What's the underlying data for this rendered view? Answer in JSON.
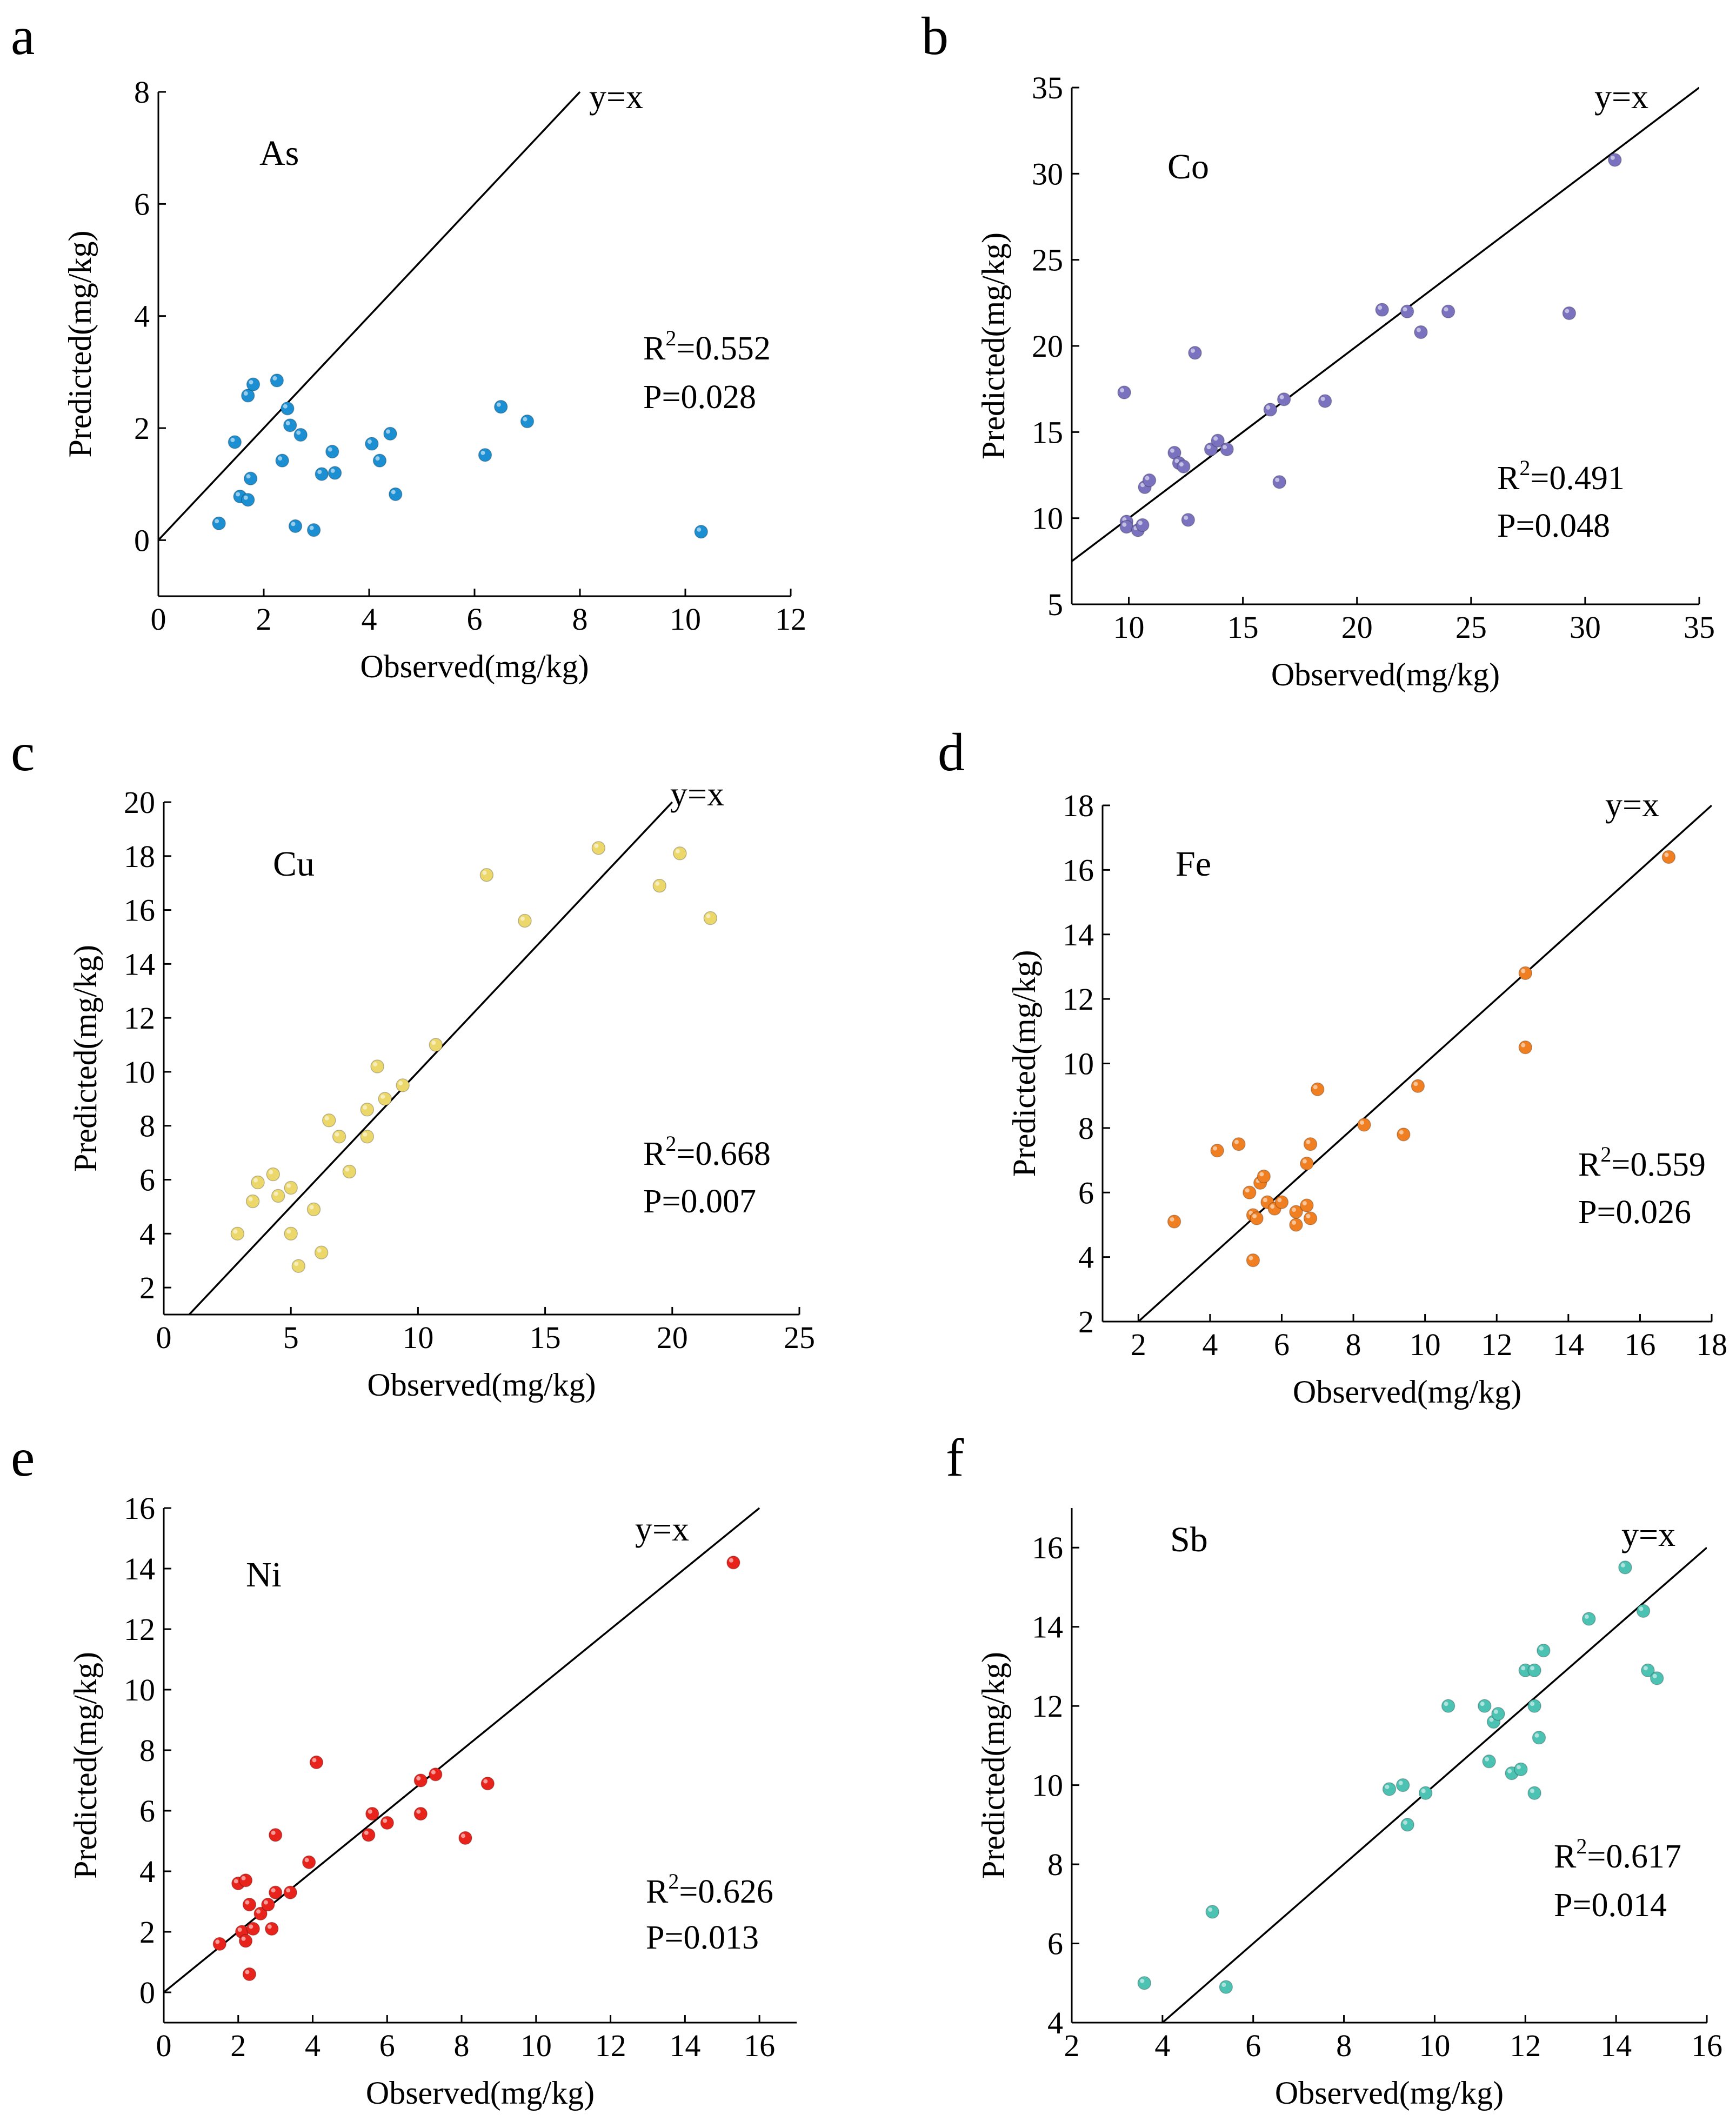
{
  "chart_data": [
    {
      "type": "scatter",
      "panel": "a",
      "element": "As",
      "xlabel": "Observed(mg/kg)",
      "ylabel": "Predicted(mg/kg)",
      "xlim": [
        0,
        12
      ],
      "ylim": [
        -1,
        8
      ],
      "xticks": [
        0,
        2,
        4,
        6,
        8,
        10,
        12
      ],
      "yticks": [
        0,
        2,
        4,
        6,
        8
      ],
      "ref_line_label": "y=x",
      "ref_line": [
        [
          0,
          0
        ],
        [
          8,
          8
        ]
      ],
      "r2_prefix": "R",
      "r2_sup": "2",
      "r2_value": "=0.552",
      "p_text": "P=0.028",
      "color": "#1b8fd2",
      "points": [
        [
          1.15,
          0.3
        ],
        [
          1.45,
          1.75
        ],
        [
          1.55,
          0.78
        ],
        [
          1.7,
          0.72
        ],
        [
          1.7,
          2.58
        ],
        [
          1.75,
          1.1
        ],
        [
          1.8,
          2.78
        ],
        [
          2.25,
          2.85
        ],
        [
          2.35,
          1.42
        ],
        [
          2.45,
          2.35
        ],
        [
          2.5,
          2.05
        ],
        [
          2.6,
          0.25
        ],
        [
          2.7,
          1.88
        ],
        [
          2.95,
          0.18
        ],
        [
          3.1,
          1.18
        ],
        [
          3.3,
          1.58
        ],
        [
          3.35,
          1.2
        ],
        [
          4.05,
          1.72
        ],
        [
          4.2,
          1.42
        ],
        [
          4.4,
          1.9
        ],
        [
          4.5,
          0.82
        ],
        [
          6.2,
          1.52
        ],
        [
          6.5,
          2.38
        ],
        [
          7.0,
          2.12
        ],
        [
          10.3,
          0.15
        ]
      ]
    },
    {
      "type": "scatter",
      "panel": "b",
      "element": "Co",
      "xlabel": "Observed(mg/kg)",
      "ylabel": "Predicted(mg/kg)",
      "xlim": [
        7.5,
        35
      ],
      "ylim": [
        5,
        35
      ],
      "xticks": [
        10,
        15,
        20,
        25,
        30,
        35
      ],
      "yticks": [
        5,
        10,
        15,
        20,
        25,
        30,
        35
      ],
      "ref_line_label": "y=x",
      "ref_line": [
        [
          7.5,
          7.5
        ],
        [
          35,
          35
        ]
      ],
      "r2_prefix": "R",
      "r2_sup": "2",
      "r2_value": "=0.491",
      "p_text": "P=0.048",
      "color": "#7a72be",
      "points": [
        [
          9.8,
          17.3
        ],
        [
          9.9,
          9.8
        ],
        [
          9.9,
          9.5
        ],
        [
          10.4,
          9.3
        ],
        [
          10.6,
          9.6
        ],
        [
          10.7,
          11.8
        ],
        [
          10.9,
          12.2
        ],
        [
          12.0,
          13.8
        ],
        [
          12.2,
          13.2
        ],
        [
          12.4,
          13.0
        ],
        [
          12.6,
          9.9
        ],
        [
          12.9,
          19.6
        ],
        [
          13.6,
          14.0
        ],
        [
          13.9,
          14.5
        ],
        [
          14.3,
          14.0
        ],
        [
          16.2,
          16.3
        ],
        [
          16.6,
          12.1
        ],
        [
          16.8,
          16.9
        ],
        [
          18.6,
          16.8
        ],
        [
          21.1,
          22.1
        ],
        [
          22.2,
          22.0
        ],
        [
          22.8,
          20.8
        ],
        [
          24.0,
          22.0
        ],
        [
          29.3,
          21.9
        ],
        [
          31.3,
          30.8
        ]
      ]
    },
    {
      "type": "scatter",
      "panel": "c",
      "element": "Cu",
      "xlabel": "Observed(mg/kg)",
      "ylabel": "Predicted(mg/kg)",
      "xlim": [
        0,
        25
      ],
      "ylim": [
        1,
        20
      ],
      "xticks": [
        0,
        5,
        10,
        15,
        20,
        25
      ],
      "yticks": [
        2,
        4,
        6,
        8,
        10,
        12,
        14,
        16,
        18,
        20
      ],
      "ref_line_label": "y=x",
      "ref_line": [
        [
          1,
          1
        ],
        [
          20,
          20
        ]
      ],
      "r2_prefix": "R",
      "r2_sup": "2",
      "r2_value": "=0.668",
      "p_text": "P=0.007",
      "color": "#ecd86a",
      "points": [
        [
          2.9,
          4.0
        ],
        [
          3.5,
          5.2
        ],
        [
          3.7,
          5.9
        ],
        [
          4.3,
          6.2
        ],
        [
          4.5,
          5.4
        ],
        [
          5.0,
          4.0
        ],
        [
          5.0,
          5.7
        ],
        [
          5.3,
          2.8
        ],
        [
          5.9,
          4.9
        ],
        [
          6.2,
          3.3
        ],
        [
          6.5,
          8.2
        ],
        [
          6.9,
          7.6
        ],
        [
          7.3,
          6.3
        ],
        [
          8.0,
          8.6
        ],
        [
          8.0,
          7.6
        ],
        [
          8.4,
          10.2
        ],
        [
          8.7,
          9.0
        ],
        [
          9.4,
          9.5
        ],
        [
          10.7,
          11.0
        ],
        [
          12.7,
          17.3
        ],
        [
          14.2,
          15.6
        ],
        [
          17.1,
          18.3
        ],
        [
          19.5,
          16.9
        ],
        [
          20.3,
          18.1
        ],
        [
          21.5,
          15.7
        ]
      ]
    },
    {
      "type": "scatter",
      "panel": "d",
      "element": "Fe",
      "xlabel": "Observed(mg/kg)",
      "ylabel": "Predicted(mg/kg)",
      "xlim": [
        1,
        18
      ],
      "ylim": [
        2,
        18
      ],
      "xticks": [
        2,
        4,
        6,
        8,
        10,
        12,
        14,
        16,
        18
      ],
      "yticks": [
        2,
        4,
        6,
        8,
        10,
        12,
        14,
        16,
        18
      ],
      "ref_line_label": "y=x",
      "ref_line": [
        [
          2,
          2
        ],
        [
          18,
          18
        ]
      ],
      "r2_prefix": "R",
      "r2_sup": "2",
      "r2_value": "=0.559",
      "p_text": "P=0.026",
      "color": "#f07f22",
      "points": [
        [
          3.0,
          5.1
        ],
        [
          4.2,
          7.3
        ],
        [
          4.8,
          7.5
        ],
        [
          5.1,
          6.0
        ],
        [
          5.2,
          5.3
        ],
        [
          5.2,
          3.9
        ],
        [
          5.3,
          5.2
        ],
        [
          5.4,
          6.3
        ],
        [
          5.5,
          6.5
        ],
        [
          5.6,
          5.7
        ],
        [
          5.8,
          5.5
        ],
        [
          6.0,
          5.7
        ],
        [
          6.4,
          5.4
        ],
        [
          6.4,
          5.0
        ],
        [
          6.7,
          6.9
        ],
        [
          6.7,
          5.6
        ],
        [
          6.8,
          5.2
        ],
        [
          6.8,
          7.5
        ],
        [
          7.0,
          9.2
        ],
        [
          8.3,
          8.1
        ],
        [
          9.4,
          7.8
        ],
        [
          9.8,
          9.3
        ],
        [
          12.8,
          12.8
        ],
        [
          12.8,
          10.5
        ],
        [
          16.8,
          16.4
        ]
      ]
    },
    {
      "type": "scatter",
      "panel": "e",
      "element": "Ni",
      "xlabel": "Observed(mg/kg)",
      "ylabel": "Predicted(mg/kg)",
      "xlim": [
        0,
        17
      ],
      "ylim": [
        -1,
        16
      ],
      "xticks": [
        0,
        2,
        4,
        6,
        8,
        10,
        12,
        14,
        16
      ],
      "yticks": [
        0,
        2,
        4,
        6,
        8,
        10,
        12,
        14,
        16
      ],
      "ref_line_label": "y=x",
      "ref_line": [
        [
          0,
          0
        ],
        [
          16,
          16
        ]
      ],
      "r2_prefix": "R",
      "r2_sup": "2",
      "r2_value": "=0.626",
      "p_text": "P=0.013",
      "color": "#e8231c",
      "points": [
        [
          1.5,
          1.6
        ],
        [
          2.0,
          3.6
        ],
        [
          2.1,
          2.0
        ],
        [
          2.2,
          1.7
        ],
        [
          2.2,
          3.7
        ],
        [
          2.3,
          0.6
        ],
        [
          2.3,
          2.9
        ],
        [
          2.4,
          2.1
        ],
        [
          2.6,
          2.6
        ],
        [
          2.8,
          2.9
        ],
        [
          2.9,
          2.1
        ],
        [
          3.0,
          3.3
        ],
        [
          3.0,
          5.2
        ],
        [
          3.4,
          3.3
        ],
        [
          3.9,
          4.3
        ],
        [
          4.1,
          7.6
        ],
        [
          5.5,
          5.2
        ],
        [
          5.6,
          5.9
        ],
        [
          6.0,
          5.6
        ],
        [
          6.9,
          7.0
        ],
        [
          6.9,
          5.9
        ],
        [
          7.3,
          7.2
        ],
        [
          8.1,
          5.1
        ],
        [
          8.7,
          6.9
        ],
        [
          15.3,
          14.2
        ]
      ]
    },
    {
      "type": "scatter",
      "panel": "f",
      "element": "Sb",
      "xlabel": "Observed(mg/kg)",
      "ylabel": "Predicted(mg/kg)",
      "xlim": [
        2,
        16
      ],
      "ylim": [
        4,
        17
      ],
      "xticks": [
        2,
        4,
        6,
        8,
        10,
        12,
        14,
        16
      ],
      "yticks": [
        4,
        6,
        8,
        10,
        12,
        14,
        16
      ],
      "ref_line_label": "y=x",
      "ref_line": [
        [
          4,
          4
        ],
        [
          16,
          16
        ]
      ],
      "r2_prefix": "R",
      "r2_sup": "2",
      "r2_value": "=0.617",
      "p_text": "P=0.014",
      "color": "#4cc2b3",
      "points": [
        [
          3.6,
          5.0
        ],
        [
          5.1,
          6.8
        ],
        [
          5.4,
          4.9
        ],
        [
          9.0,
          9.9
        ],
        [
          9.3,
          10.0
        ],
        [
          9.4,
          9.0
        ],
        [
          9.8,
          9.8
        ],
        [
          10.3,
          12.0
        ],
        [
          11.1,
          12.0
        ],
        [
          11.2,
          10.6
        ],
        [
          11.3,
          11.6
        ],
        [
          11.4,
          11.8
        ],
        [
          11.7,
          10.3
        ],
        [
          11.9,
          10.4
        ],
        [
          12.0,
          12.9
        ],
        [
          12.2,
          12.9
        ],
        [
          12.2,
          9.8
        ],
        [
          12.2,
          12.0
        ],
        [
          12.3,
          11.2
        ],
        [
          12.4,
          13.4
        ],
        [
          13.4,
          14.2
        ],
        [
          14.2,
          15.5
        ],
        [
          14.6,
          14.4
        ],
        [
          14.7,
          12.9
        ],
        [
          14.9,
          12.7
        ]
      ]
    }
  ]
}
